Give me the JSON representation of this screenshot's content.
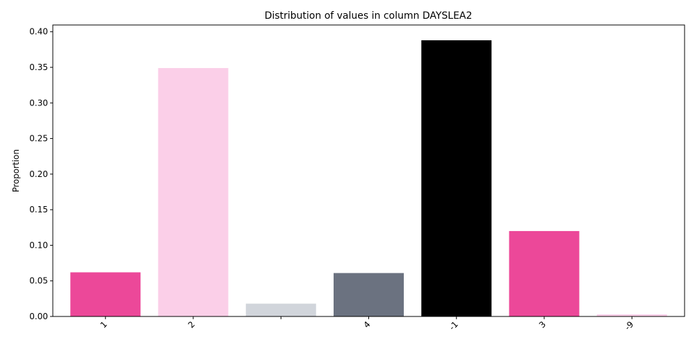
{
  "chart_data": {
    "type": "bar",
    "title": "Distribution of values in column DAYSLEA2",
    "xlabel": "",
    "ylabel": "Proportion",
    "categories": [
      "1",
      "2",
      "",
      "4",
      "-1",
      "3",
      "-9"
    ],
    "values": [
      0.062,
      0.349,
      0.018,
      0.061,
      0.388,
      0.12,
      0.003
    ],
    "colors": [
      "#ec4899",
      "#fbcfe8",
      "#d1d5db",
      "#6b7280",
      "#000000",
      "#ec4899",
      "#fbcfe8"
    ],
    "ylim": [
      0,
      0.4095
    ],
    "yticks": [
      0.0,
      0.05,
      0.1,
      0.15,
      0.2,
      0.25,
      0.3,
      0.35,
      0.4
    ],
    "ytick_labels": [
      "0.00",
      "0.05",
      "0.10",
      "0.15",
      "0.20",
      "0.25",
      "0.30",
      "0.35",
      "0.40"
    ],
    "grid": false,
    "legend": "none"
  }
}
